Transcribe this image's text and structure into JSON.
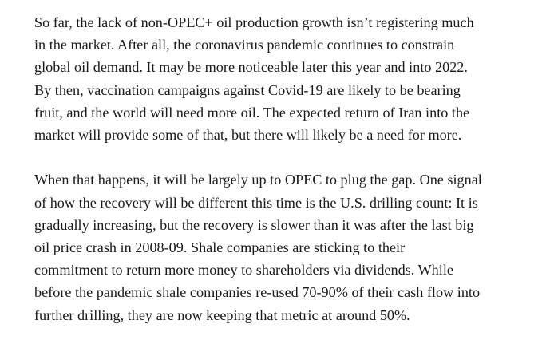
{
  "article": {
    "paragraphs": [
      {
        "lines": [
          "So far, the lack of non-OPEC+ oil production growth isn’t registering much",
          "in the market. After all, the coronavirus pandemic continues to constrain",
          "global oil demand. It may be more noticeable later this year and into 2022.",
          "By then, vaccination campaigns against Covid-19 are likely to be bearing",
          "fruit, and the world will need more oil. The expected return of Iran into the",
          "market will provide some of that, but there will likely be a need for more."
        ]
      },
      {
        "lines": [
          "When that happens, it will be largely up to OPEC to plug the gap. One signal",
          "of how the recovery will be different this time is the U.S. drilling count: It is",
          "gradually increasing, but the recovery is slower than it was after the last big",
          "oil price crash in 2008-09. Shale companies are sticking to their",
          "commitment to return more money to shareholders via dividends. While",
          "before the pandemic shale companies re-used 70-90% of their cash flow into",
          "further drilling, they are now keeping that metric at around 50%."
        ]
      }
    ]
  }
}
